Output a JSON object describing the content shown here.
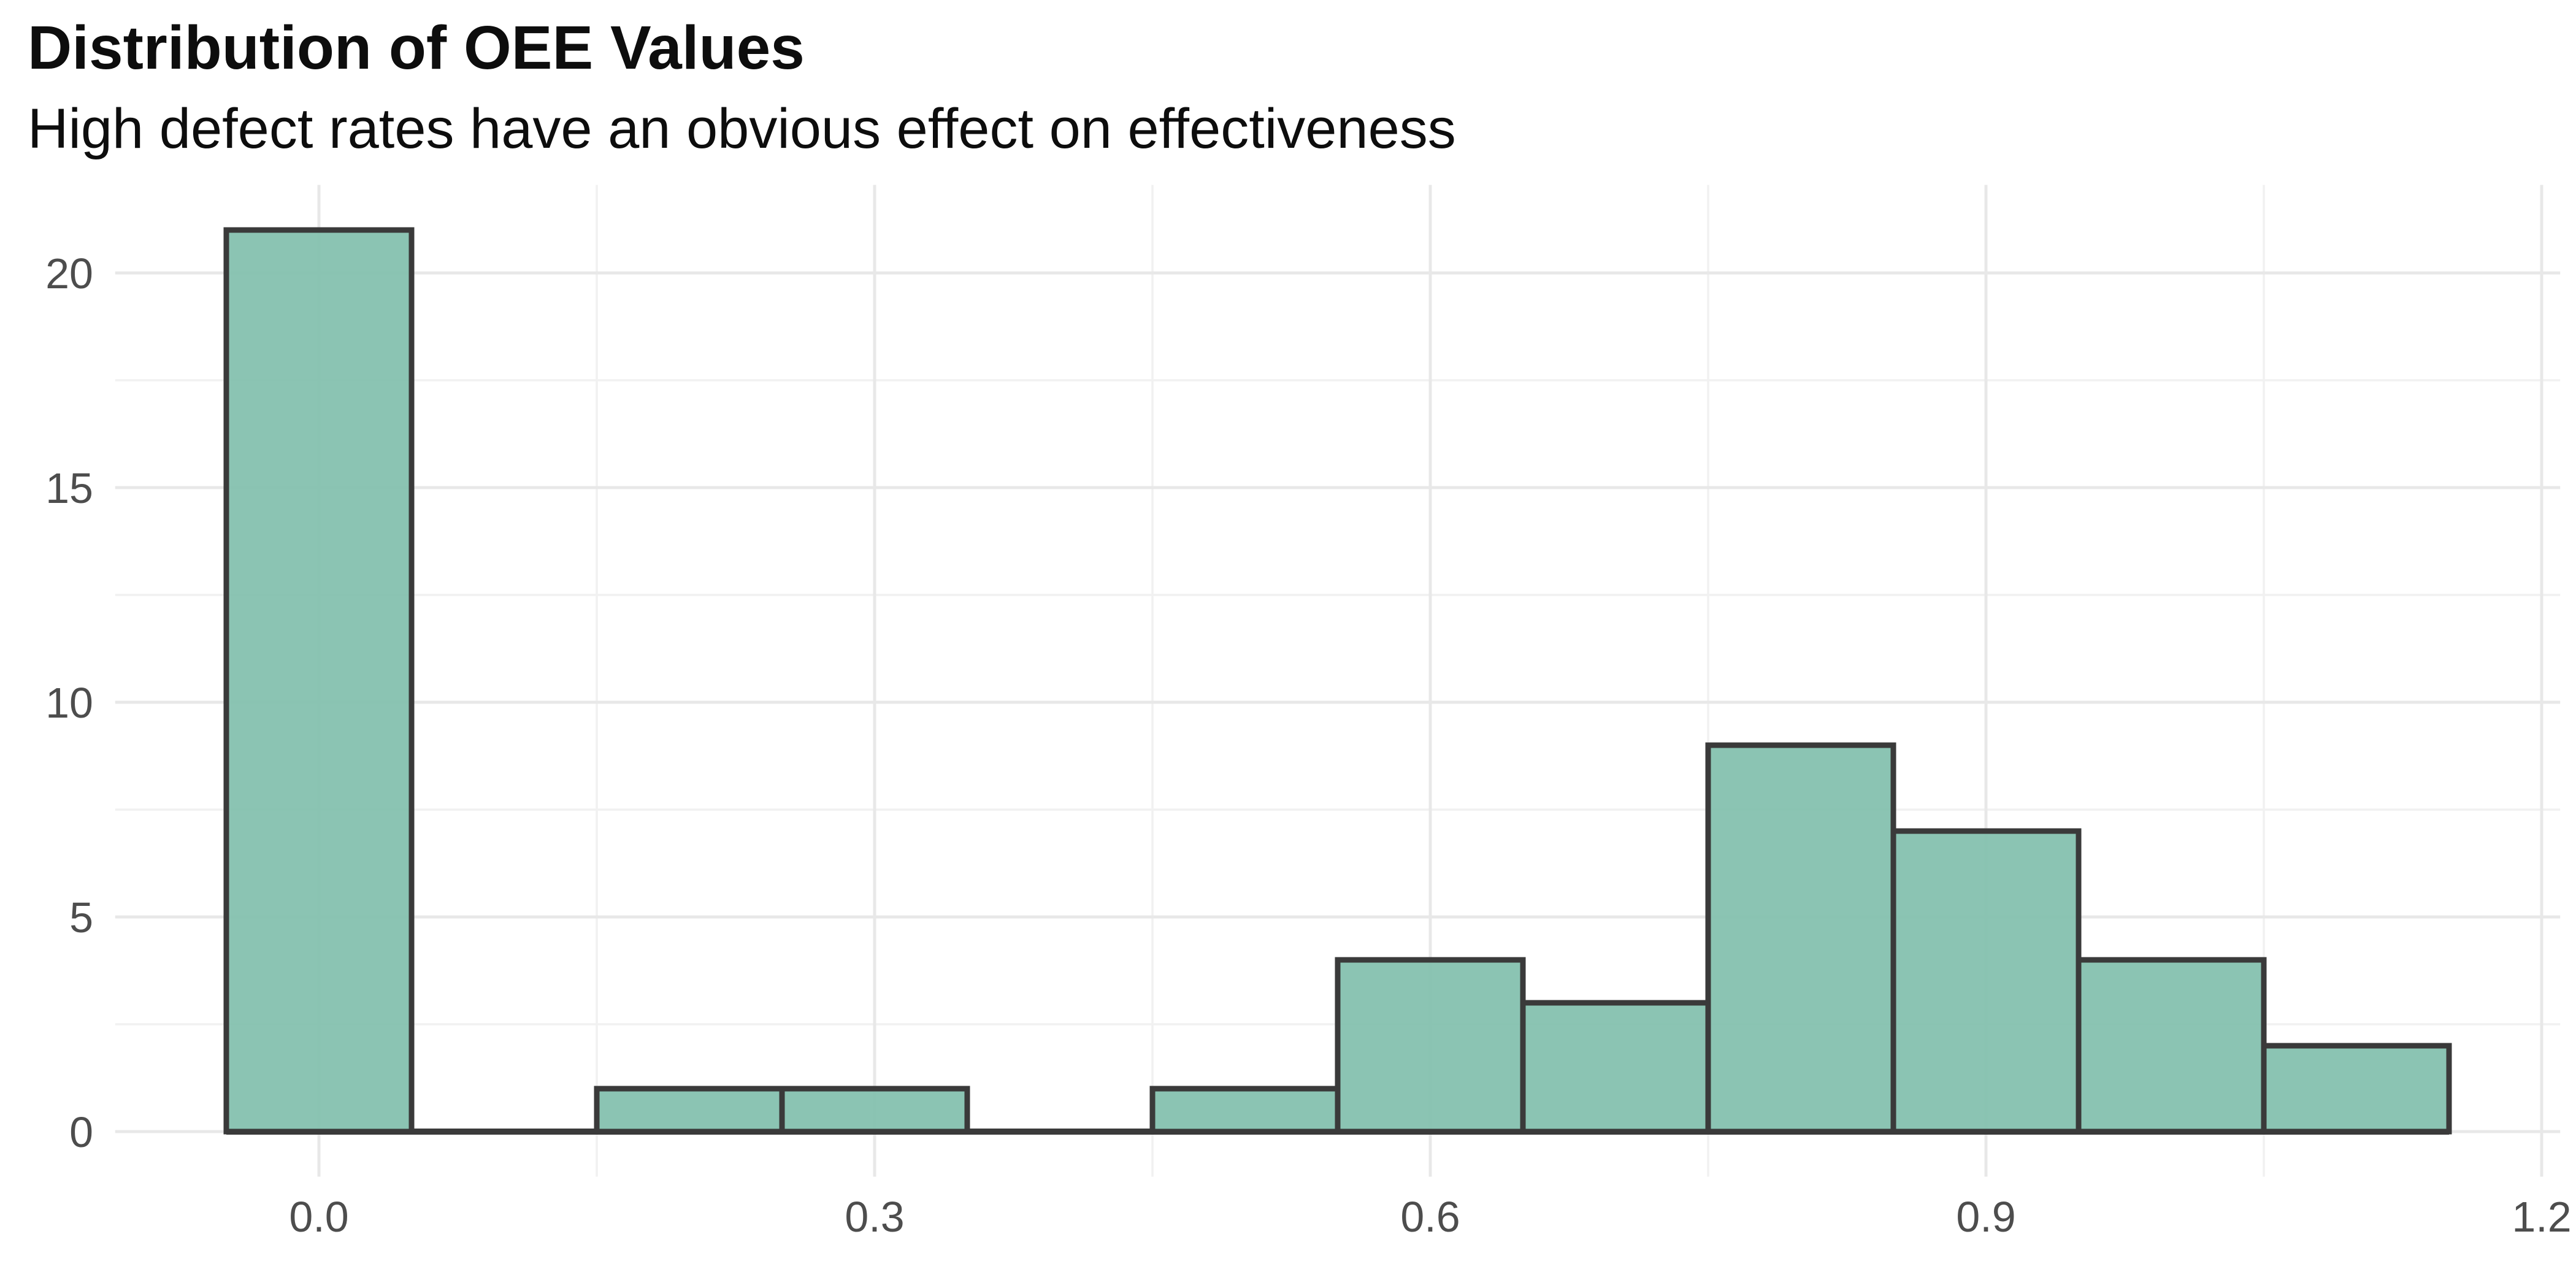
{
  "chart_data": {
    "type": "histogram",
    "title": "Distribution of OEE Values",
    "subtitle": "High defect rates have an obvious effect on effectiveness",
    "xlabel": "",
    "ylabel": "",
    "bin_width": 0.1,
    "bins": [
      {
        "center": 0.0,
        "count": 21
      },
      {
        "center": 0.1,
        "count": 0
      },
      {
        "center": 0.2,
        "count": 1
      },
      {
        "center": 0.3,
        "count": 1
      },
      {
        "center": 0.4,
        "count": 0
      },
      {
        "center": 0.5,
        "count": 1
      },
      {
        "center": 0.6,
        "count": 4
      },
      {
        "center": 0.7,
        "count": 3
      },
      {
        "center": 0.8,
        "count": 9
      },
      {
        "center": 0.9,
        "count": 7
      },
      {
        "center": 1.0,
        "count": 4
      },
      {
        "center": 1.1,
        "count": 2
      }
    ],
    "x_ticks": [
      {
        "value": 0.0,
        "label": "0.0"
      },
      {
        "value": 0.3,
        "label": "0.3"
      },
      {
        "value": 0.6,
        "label": "0.6"
      },
      {
        "value": 0.9,
        "label": "0.9"
      },
      {
        "value": 1.2,
        "label": "1.2"
      }
    ],
    "y_ticks": [
      {
        "value": 0,
        "label": "0"
      },
      {
        "value": 5,
        "label": "5"
      },
      {
        "value": 10,
        "label": "10"
      },
      {
        "value": 15,
        "label": "15"
      },
      {
        "value": 20,
        "label": "20"
      }
    ],
    "x_minor_ticks": [
      0.15,
      0.45,
      0.75,
      1.05
    ],
    "y_minor_ticks": [
      2.5,
      7.5,
      12.5,
      17.5
    ],
    "x_range": [
      -0.11,
      1.21
    ],
    "y_range": [
      -1.05,
      22.05
    ],
    "grid": true,
    "legend": "none",
    "colors": {
      "bar_fill": "rgba(129,191,173,0.92)",
      "bar_stroke": "#3a3a3a",
      "grid_major": "#e8e8e8",
      "grid_minor": "#f1f1f1",
      "axis_text": "#4d4d4d",
      "background": "#ffffff"
    }
  }
}
